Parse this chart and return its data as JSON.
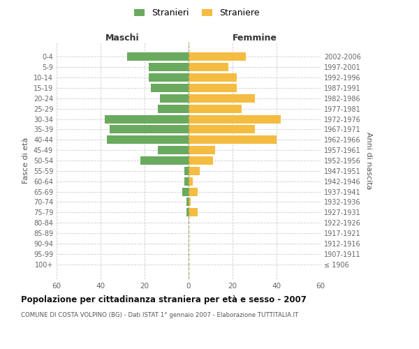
{
  "age_groups": [
    "100+",
    "95-99",
    "90-94",
    "85-89",
    "80-84",
    "75-79",
    "70-74",
    "65-69",
    "60-64",
    "55-59",
    "50-54",
    "45-49",
    "40-44",
    "35-39",
    "30-34",
    "25-29",
    "20-24",
    "15-19",
    "10-14",
    "5-9",
    "0-4"
  ],
  "birth_years": [
    "≤ 1906",
    "1907-1911",
    "1912-1916",
    "1917-1921",
    "1922-1926",
    "1927-1931",
    "1932-1936",
    "1937-1941",
    "1942-1946",
    "1947-1951",
    "1952-1956",
    "1957-1961",
    "1962-1966",
    "1967-1971",
    "1972-1976",
    "1977-1981",
    "1982-1986",
    "1987-1991",
    "1992-1996",
    "1997-2001",
    "2002-2006"
  ],
  "males": [
    0,
    0,
    0,
    0,
    0,
    1,
    1,
    3,
    2,
    2,
    22,
    14,
    37,
    36,
    38,
    14,
    13,
    17,
    18,
    18,
    28
  ],
  "females": [
    0,
    0,
    0,
    0,
    0,
    4,
    1,
    4,
    2,
    5,
    11,
    12,
    40,
    30,
    42,
    24,
    30,
    22,
    22,
    18,
    26
  ],
  "male_color": "#6aaa5f",
  "female_color": "#f5bc42",
  "background_color": "#ffffff",
  "grid_color": "#cccccc",
  "title": "Popolazione per cittadinanza straniera per età e sesso - 2007",
  "subtitle": "COMUNE DI COSTA VOLPINO (BG) - Dati ISTAT 1° gennaio 2007 - Elaborazione TUTTITALIA.IT",
  "xlabel_left": "Maschi",
  "xlabel_right": "Femmine",
  "ylabel_left": "Fasce di età",
  "ylabel_right": "Anni di nascita",
  "xlim": 60,
  "legend_stranieri": "Stranieri",
  "legend_straniere": "Straniere"
}
